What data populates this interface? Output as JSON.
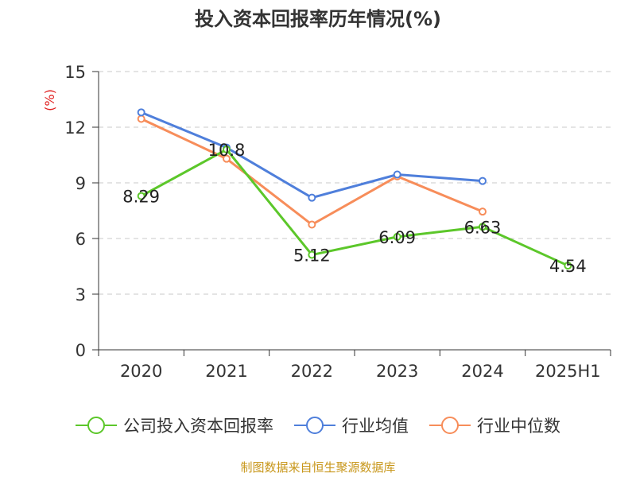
{
  "chart_data": {
    "type": "line",
    "title": "投入资本回报率历年情况(%)",
    "ylabel": "(%)",
    "ylim": [
      0,
      15
    ],
    "yticks": [
      0,
      3,
      6,
      9,
      12,
      15
    ],
    "grid": true,
    "legend_position": "bottom",
    "categories": [
      "2020",
      "2021",
      "2022",
      "2023",
      "2024",
      "2025H1"
    ],
    "series": [
      {
        "name": "公司投入资本回报率",
        "color": "#5cc72a",
        "values": [
          8.29,
          10.8,
          5.12,
          6.09,
          6.63,
          4.54
        ],
        "labels": [
          "8.29",
          "10.8",
          "5.12",
          "6.09",
          "6.63",
          "4.54"
        ]
      },
      {
        "name": "行业均值",
        "color": "#4f7fdb",
        "values": [
          12.8,
          10.9,
          8.2,
          9.45,
          9.1,
          null
        ]
      },
      {
        "name": "行业中位数",
        "color": "#f78d5a",
        "values": [
          12.45,
          10.3,
          6.75,
          9.35,
          7.45,
          null
        ]
      }
    ]
  },
  "footer": {
    "source": "制图数据来自恒生聚源数据库"
  }
}
